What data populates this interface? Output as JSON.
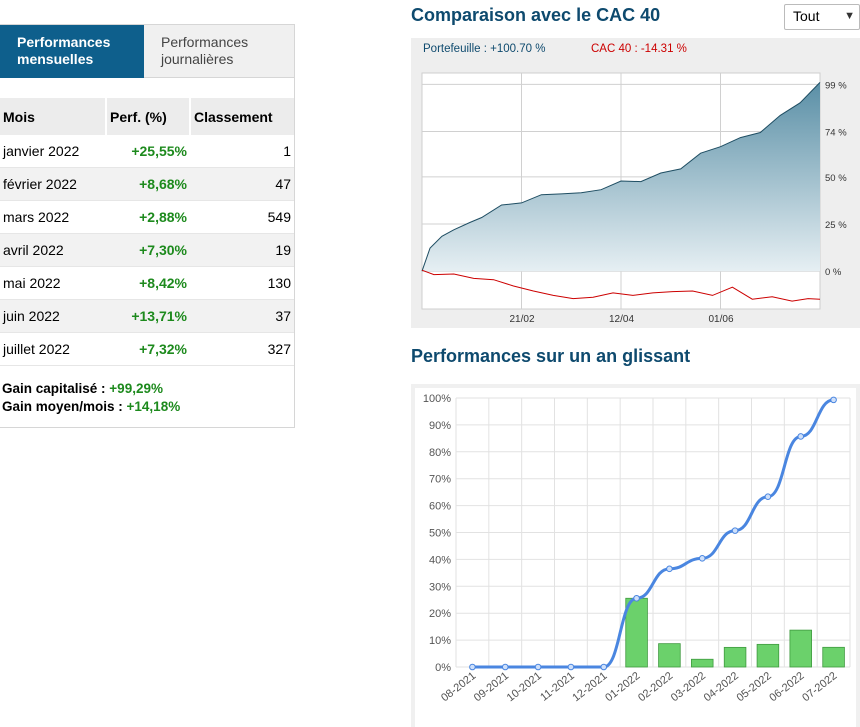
{
  "tabs": [
    {
      "label": "Performances mensuelles",
      "active": true
    },
    {
      "label": "Performances journalières",
      "active": false
    }
  ],
  "table": {
    "headers": [
      "Mois",
      "Perf. (%)",
      "Classement"
    ],
    "rows": [
      {
        "month": "janvier 2022",
        "perf": "+25,55%",
        "rank": "1"
      },
      {
        "month": "février 2022",
        "perf": "+8,68%",
        "rank": "47"
      },
      {
        "month": "mars 2022",
        "perf": "+2,88%",
        "rank": "549"
      },
      {
        "month": "avril 2022",
        "perf": "+7,30%",
        "rank": "19"
      },
      {
        "month": "mai 2022",
        "perf": "+8,42%",
        "rank": "130"
      },
      {
        "month": "juin 2022",
        "perf": "+13,71%",
        "rank": "37"
      },
      {
        "month": "juillet 2022",
        "perf": "+7,32%",
        "rank": "327"
      }
    ]
  },
  "summary": {
    "capitalised_label": "Gain capitalisé : ",
    "capitalised_value": "+99,29%",
    "avg_label": "Gain moyen/mois : ",
    "avg_value": "+14,18%"
  },
  "comparison": {
    "title": "Comparaison avec le CAC 40",
    "period_select": "Tout",
    "portfolio_legend": "Portefeuille : +100.70 %",
    "cac_legend": "CAC 40 : -14.31 %",
    "colors": {
      "portfolio": "#1f4e63",
      "cac": "#cc0000",
      "legend_portfolio": "#0e4a6e"
    }
  },
  "rolling": {
    "title": "Performances sur un an glissant"
  },
  "chart_data": [
    {
      "type": "area",
      "title": "Comparaison avec le CAC 40",
      "x_ticks": [
        "21/02",
        "12/04",
        "01/06"
      ],
      "y_ticks": [
        "0 %",
        "25 %",
        "50 %",
        "74 %",
        "99 %"
      ],
      "ylim": [
        -20,
        105
      ],
      "grid": true,
      "series": [
        {
          "name": "Portefeuille",
          "x": [
            0,
            2,
            5,
            8,
            12,
            15,
            20,
            25,
            30,
            35,
            40,
            45,
            50,
            55,
            60,
            65,
            70,
            75,
            80,
            85,
            90,
            95,
            100
          ],
          "values": [
            0,
            13,
            18,
            23,
            25,
            29,
            34,
            37,
            40,
            42,
            41,
            44,
            47,
            48,
            51,
            55,
            62,
            67,
            70,
            74,
            82,
            90,
            100
          ]
        },
        {
          "name": "CAC 40",
          "x": [
            0,
            3,
            8,
            13,
            18,
            23,
            28,
            33,
            38,
            43,
            48,
            53,
            58,
            63,
            68,
            73,
            78,
            83,
            88,
            93,
            97,
            100
          ],
          "values": [
            0,
            -1,
            -2,
            -3,
            -5,
            -7,
            -11,
            -12,
            -15,
            -13,
            -12,
            -12,
            -12,
            -10,
            -11,
            -12,
            -9,
            -14,
            -14,
            -15,
            -15,
            -14
          ]
        }
      ]
    },
    {
      "type": "bar",
      "title": "Performances sur un an glissant",
      "categories": [
        "08-2021",
        "09-2021",
        "10-2021",
        "11-2021",
        "12-2021",
        "01-2022",
        "02-2022",
        "03-2022",
        "04-2022",
        "05-2022",
        "06-2022",
        "07-2022"
      ],
      "ylim": [
        0,
        100
      ],
      "y_ticks": [
        "0%",
        "10%",
        "20%",
        "30%",
        "40%",
        "50%",
        "60%",
        "70%",
        "80%",
        "90%",
        "100%"
      ],
      "grid": true,
      "series": [
        {
          "type": "bar",
          "values": [
            0,
            0,
            0,
            0,
            0,
            25.55,
            8.68,
            2.88,
            7.3,
            8.42,
            13.71,
            7.32
          ],
          "color": "#6bd16b"
        },
        {
          "type": "line",
          "values": [
            0,
            0,
            0,
            0,
            0,
            25.55,
            36.5,
            40.4,
            50.7,
            63.3,
            85.7,
            99.3
          ],
          "color": "#4a86e0"
        }
      ]
    }
  ]
}
